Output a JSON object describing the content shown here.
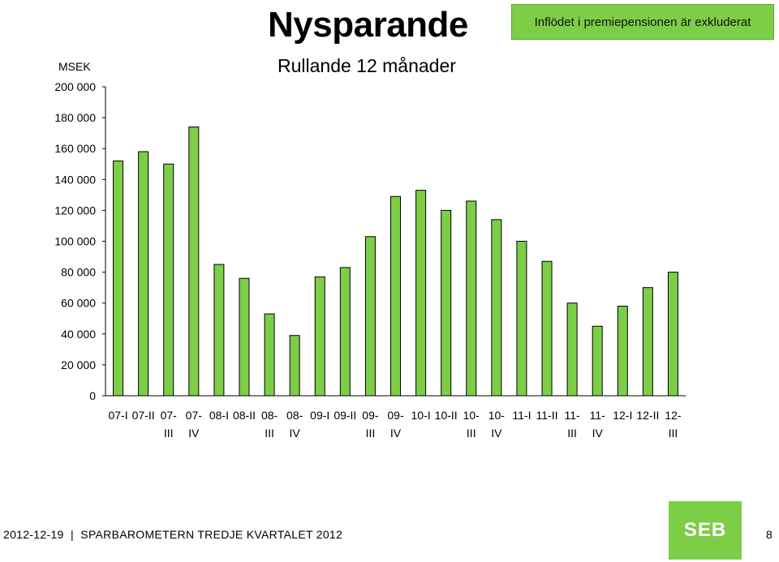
{
  "header": {
    "title": "Nysparande",
    "subtitle": "Rullande 12 månader",
    "note": "Inflödet i premiepensionen  är exkluderat"
  },
  "chart_data": {
    "type": "bar",
    "unit_label": "MSEK",
    "categories": [
      "07-I",
      "07-II",
      "07-III",
      "07-IV",
      "08-I",
      "08-II",
      "08-III",
      "08-IV",
      "09-I",
      "09-II",
      "09-III",
      "09-IV",
      "10-I",
      "10-II",
      "10-III",
      "10-IV",
      "11-I",
      "11-II",
      "11-III",
      "11-IV",
      "12-I",
      "12-II",
      "12-III"
    ],
    "category_lines": [
      [
        "07-I"
      ],
      [
        "07-II"
      ],
      [
        "07-",
        "III"
      ],
      [
        "07-",
        "IV"
      ],
      [
        "08-I"
      ],
      [
        "08-II"
      ],
      [
        "08-",
        "III"
      ],
      [
        "08-",
        "IV"
      ],
      [
        "09-I"
      ],
      [
        "09-II"
      ],
      [
        "09-",
        "III"
      ],
      [
        "09-",
        "IV"
      ],
      [
        "10-I"
      ],
      [
        "10-II"
      ],
      [
        "10-",
        "III"
      ],
      [
        "10-",
        "IV"
      ],
      [
        "11-I"
      ],
      [
        "11-II"
      ],
      [
        "11-",
        "III"
      ],
      [
        "11-",
        "IV"
      ],
      [
        "12-I"
      ],
      [
        "12-II"
      ],
      [
        "12-",
        "III"
      ]
    ],
    "values": [
      152000,
      158000,
      150000,
      174000,
      85000,
      76000,
      53000,
      39000,
      77000,
      83000,
      103000,
      129000,
      133000,
      120000,
      126000,
      114000,
      100000,
      87000,
      60000,
      45000,
      58000,
      70000,
      80000
    ],
    "ylim": [
      0,
      200000
    ],
    "yticks": [
      0,
      20000,
      40000,
      60000,
      80000,
      100000,
      120000,
      140000,
      160000,
      180000,
      200000
    ],
    "ytick_labels": [
      "0",
      "20 000",
      "40 000",
      "60 000",
      "80 000",
      "100 000",
      "120 000",
      "140 000",
      "160 000",
      "180 000",
      "200 000"
    ],
    "bar_color": "#7dce47",
    "grid": "horizontal ticks only",
    "legend": "none"
  },
  "footer": {
    "text": "2012-12-19  |  SPARBAROMETERN TREDJE KVARTALET 2012",
    "logo": "SEB",
    "page": "8"
  }
}
